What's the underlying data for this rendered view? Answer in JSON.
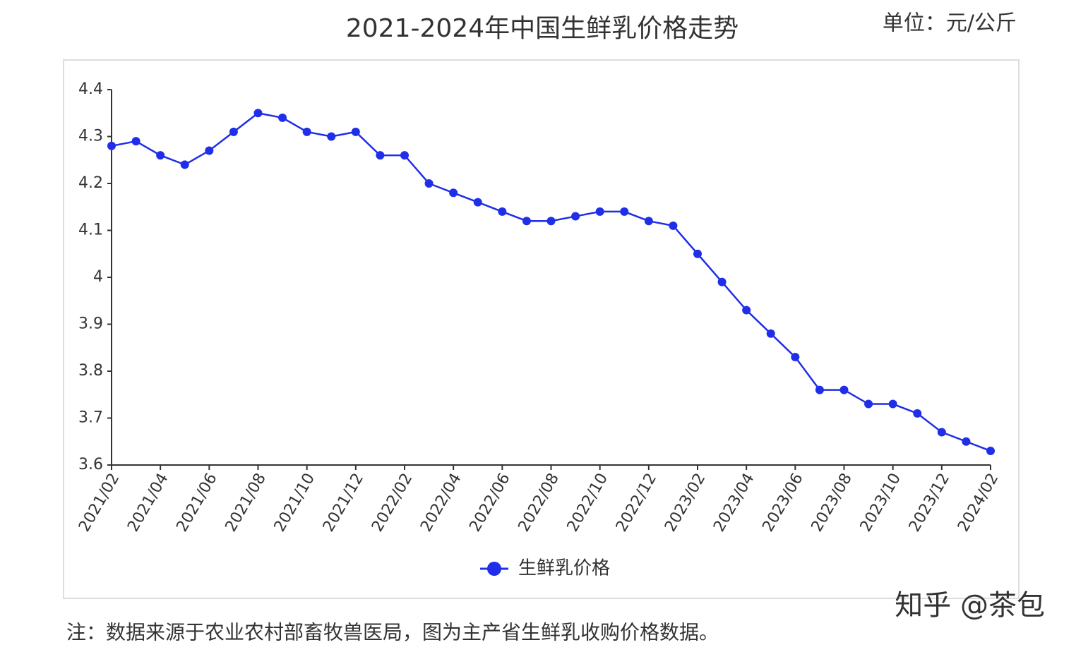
{
  "chart_data": {
    "type": "line",
    "title": "2021-2024年中国生鲜乳价格走势",
    "unit_label": "单位：元/公斤",
    "note": "注：数据来源于农业农村部畜牧兽医局，图为主产省生鲜乳收购价格数据。",
    "watermark": "知乎 @茶包",
    "categories": [
      "2021/02",
      null,
      "2021/04",
      null,
      "2021/06",
      null,
      "2021/08",
      null,
      "2021/10",
      null,
      "2021/12",
      null,
      "2022/02",
      null,
      "2022/04",
      null,
      "2022/06",
      null,
      "2022/08",
      null,
      "2022/10",
      null,
      "2022/12",
      null,
      "2023/02",
      null,
      "2023/04",
      null,
      "2023/06",
      null,
      "2023/08",
      null,
      "2023/10",
      null,
      "2023/12",
      null,
      "2024/02"
    ],
    "series": [
      {
        "name": "生鲜乳价格",
        "color": "#1f2ee8",
        "values": [
          4.28,
          4.29,
          4.26,
          4.24,
          4.27,
          4.31,
          4.35,
          4.34,
          4.31,
          4.3,
          4.31,
          4.26,
          4.26,
          4.2,
          4.18,
          4.16,
          4.14,
          4.12,
          4.12,
          4.13,
          4.14,
          4.14,
          4.12,
          4.11,
          4.05,
          3.99,
          3.93,
          3.88,
          3.83,
          3.76,
          3.76,
          3.73,
          3.73,
          3.71,
          3.67,
          3.65,
          3.63
        ]
      }
    ],
    "ylim": [
      3.6,
      4.4
    ],
    "yticks": [
      3.6,
      3.7,
      3.8,
      3.9,
      4,
      4.1,
      4.2,
      4.3,
      4.4
    ],
    "grid": false,
    "legend": "bottom"
  }
}
